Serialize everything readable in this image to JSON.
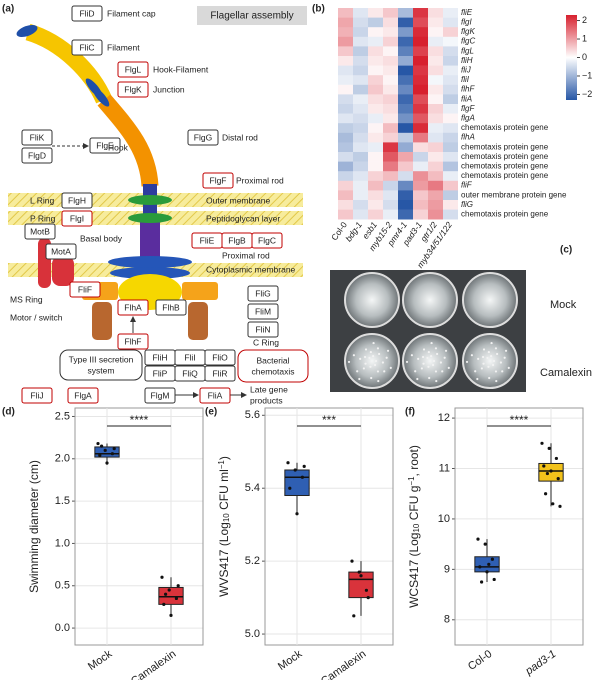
{
  "panel_labels": [
    "(a)",
    "(b)",
    "(c)",
    "(d)",
    "(e)",
    "(f)"
  ],
  "diagram": {
    "title": "Flagellar assembly",
    "boxes": [
      {
        "label": "FliD",
        "color": "#333333"
      },
      {
        "label": "FliC",
        "color": "#333333"
      },
      {
        "label": "FlgL",
        "color": "#c00000"
      },
      {
        "label": "FlgK",
        "color": "#c00000"
      },
      {
        "label": "FliK",
        "color": "#333333"
      },
      {
        "label": "FlgD",
        "color": "#333333"
      },
      {
        "label": "FlgE",
        "color": "#333333"
      },
      {
        "label": "FlgG",
        "color": "#333333"
      },
      {
        "label": "FlgF",
        "color": "#c00000"
      },
      {
        "label": "FlgH",
        "color": "#333333"
      },
      {
        "label": "FlgI",
        "color": "#c00000"
      },
      {
        "label": "MotB",
        "color": "#333333"
      },
      {
        "label": "MotA",
        "color": "#333333"
      },
      {
        "label": "FliE",
        "color": "#c00000"
      },
      {
        "label": "FlgB",
        "color": "#c00000"
      },
      {
        "label": "FlgC",
        "color": "#c00000"
      },
      {
        "label": "FliF",
        "color": "#c00000"
      },
      {
        "label": "FlhA",
        "color": "#c00000"
      },
      {
        "label": "FlhB",
        "color": "#333333"
      },
      {
        "label": "FlhF",
        "color": "#c00000"
      },
      {
        "label": "FliG",
        "color": "#333333"
      },
      {
        "label": "FliM",
        "color": "#333333"
      },
      {
        "label": "FliN",
        "color": "#333333"
      },
      {
        "label": "FliH",
        "color": "#333333"
      },
      {
        "label": "FliI",
        "color": "#333333"
      },
      {
        "label": "FliO",
        "color": "#333333"
      },
      {
        "label": "FliP",
        "color": "#333333"
      },
      {
        "label": "FliQ",
        "color": "#333333"
      },
      {
        "label": "FliR",
        "color": "#333333"
      },
      {
        "label": "FliJ",
        "color": "#c00000"
      },
      {
        "label": "FlgA",
        "color": "#c00000"
      },
      {
        "label": "FlgM",
        "color": "#333333"
      },
      {
        "label": "FliA",
        "color": "#c00000"
      }
    ],
    "captions": [
      "Filament cap",
      "Filament",
      "Hook-Filament",
      "Junction",
      "Hook",
      "Distal rod",
      "Proximal rod",
      "L Ring",
      "Outer membrane",
      "P Ring",
      "Peptidoglycan layer",
      "Basal body",
      "Proximal rod",
      "Cytoplasmic membrane",
      "MS Ring",
      "Motor / switch",
      "C Ring",
      "Late gene",
      "products"
    ],
    "secretion_box": [
      "Type III secretion",
      "system"
    ],
    "chemotaxis_box": {
      "lines": [
        "Bacterial",
        "chemotaxis"
      ],
      "color": "#c00000"
    }
  },
  "plates": {
    "rows": [
      "Mock",
      "Camalexin"
    ]
  },
  "chart_data": [
    {
      "type": "heatmap",
      "rows": [
        "fliE",
        "flgI",
        "flgK",
        "flgC",
        "flgL",
        "fliH",
        "fliJ",
        "fliI",
        "flhF",
        "fliA",
        "flgF",
        "flgA",
        "chemotaxis protein gene",
        "flhA",
        "chemotaxis protein gene",
        "chemotaxis protein gene",
        "chemotaxis protein gene",
        "chemotaxis protein gene",
        "fliF",
        "outer membrane protein gene",
        "fliG",
        "chemotaxis protein gene"
      ],
      "columns": [
        "Col-0",
        "bdg-1",
        "esb1",
        "myb15-2",
        "pmr4-1",
        "pad3-1",
        "gtr1/2",
        "myb34/51/122"
      ],
      "values": [
        [
          0.6,
          -0.3,
          0.2,
          0.5,
          -0.8,
          1.8,
          0.3,
          -0.2
        ],
        [
          0.8,
          -0.4,
          -0.6,
          0.3,
          -1.9,
          1.6,
          0.2,
          -0.3
        ],
        [
          0.7,
          -0.5,
          0.1,
          0.2,
          -1.2,
          1.9,
          0.1,
          0.4
        ],
        [
          0.9,
          -0.3,
          -0.2,
          0.4,
          -1.8,
          2.0,
          -0.2,
          -0.1
        ],
        [
          0.5,
          -0.6,
          0.3,
          0.1,
          -1.5,
          1.7,
          0.3,
          -0.4
        ],
        [
          0.2,
          -0.4,
          0.2,
          0.3,
          -1.0,
          2.1,
          0.2,
          -0.5
        ],
        [
          -0.3,
          -0.5,
          0.1,
          0.2,
          -2.0,
          1.8,
          0.3,
          -0.2
        ],
        [
          -0.2,
          -0.3,
          0.4,
          0.1,
          -1.7,
          1.9,
          -0.1,
          -0.3
        ],
        [
          0.1,
          -0.6,
          0.5,
          0.2,
          -1.4,
          2.0,
          0.2,
          -0.4
        ],
        [
          -0.4,
          -0.2,
          0.3,
          0.4,
          -1.8,
          1.6,
          0.1,
          -0.6
        ],
        [
          -0.5,
          -0.3,
          0.2,
          0.3,
          -1.6,
          1.8,
          0.4,
          -0.2
        ],
        [
          -0.3,
          -0.4,
          -0.2,
          0.2,
          -1.3,
          1.5,
          0.3,
          0.1
        ],
        [
          -0.6,
          -0.5,
          0.1,
          0.6,
          -2.1,
          1.9,
          -0.2,
          -0.3
        ],
        [
          -0.8,
          -0.4,
          0.2,
          0.4,
          -0.6,
          1.2,
          -0.3,
          -0.5
        ],
        [
          -0.7,
          -0.3,
          -0.2,
          1.8,
          -1.0,
          0.3,
          0.4,
          -0.6
        ],
        [
          -0.4,
          -0.6,
          0.1,
          1.5,
          0.8,
          -0.5,
          0.2,
          -0.3
        ],
        [
          -0.9,
          -0.5,
          0.1,
          1.2,
          0.5,
          -0.2,
          0.4,
          -0.7
        ],
        [
          -0.5,
          -0.3,
          0.4,
          0.6,
          -0.4,
          1.0,
          0.6,
          -0.2
        ],
        [
          0.4,
          -0.2,
          0.6,
          -0.5,
          -1.4,
          0.9,
          1.2,
          0.5
        ],
        [
          0.6,
          -0.2,
          0.3,
          -0.3,
          -1.9,
          0.5,
          0.8,
          -0.6
        ],
        [
          0.3,
          -0.4,
          0.2,
          -0.4,
          -2.0,
          0.6,
          0.9,
          0.2
        ],
        [
          0.5,
          -0.3,
          0.4,
          -0.2,
          -1.8,
          0.4,
          1.0,
          -0.4
        ]
      ],
      "colors": [
        "#2757a6",
        "#ffffff",
        "#d7202e"
      ],
      "clim": [
        -2.3,
        2.3
      ],
      "cticks": [
        2,
        1,
        0,
        {
          "value": -1,
          "label": "−1"
        },
        {
          "value": -2,
          "label": "−2"
        }
      ]
    },
    {
      "type": "box",
      "ylabel_parts": [
        {
          "text": "Swimming diameter (cm)",
          "shift": "none"
        }
      ],
      "categories": [
        "Mock",
        "Camalexin"
      ],
      "colors": [
        "#2f5fb3",
        "#d9333b"
      ],
      "boxes": [
        {
          "low": 1.93,
          "q1": 2.02,
          "median": 2.06,
          "q3": 2.14,
          "high": 2.18,
          "points": [
            2.18,
            2.1,
            2.06,
            2.04,
            1.95,
            2.12,
            2.15
          ]
        },
        {
          "low": 0.15,
          "q1": 0.28,
          "median": 0.37,
          "q3": 0.48,
          "high": 0.6,
          "points": [
            0.6,
            0.45,
            0.35,
            0.28,
            0.15,
            0.5,
            0.4
          ]
        }
      ],
      "ylim": [
        -0.2,
        2.6
      ],
      "yticks": [
        {
          "value": 0,
          "label": "0.0"
        },
        0.5,
        {
          "value": 1,
          "label": "1.0"
        },
        1.5,
        {
          "value": 2,
          "label": "2.0"
        },
        2.5
      ],
      "significance": "****",
      "grid": true
    },
    {
      "type": "box",
      "ylabel_parts": [
        {
          "text": "WVS417 (Log",
          "shift": "none"
        },
        {
          "text": "10",
          "shift": "sub"
        },
        {
          "text": " CFU ml",
          "shift": "none"
        },
        {
          "text": "−1",
          "shift": "super"
        },
        {
          "text": ")",
          "shift": "none"
        }
      ],
      "categories": [
        "Mock",
        "Camalexin"
      ],
      "colors": [
        "#2f5fb3",
        "#d9333b"
      ],
      "boxes": [
        {
          "low": 5.33,
          "q1": 5.38,
          "median": 5.43,
          "q3": 5.45,
          "high": 5.47,
          "points": [
            5.47,
            5.45,
            5.43,
            5.4,
            5.33,
            5.46
          ]
        },
        {
          "low": 5.05,
          "q1": 5.1,
          "median": 5.15,
          "q3": 5.17,
          "high": 5.2,
          "points": [
            5.2,
            5.17,
            5.12,
            5.05,
            5.16,
            5.1
          ]
        }
      ],
      "ylim": [
        4.97,
        5.62
      ],
      "yticks": [
        {
          "value": 5,
          "label": "5.0"
        },
        5.2,
        5.4,
        5.6
      ],
      "significance": "***",
      "grid": true
    },
    {
      "type": "box",
      "ylabel_parts": [
        {
          "text": "WCS417 (Log",
          "shift": "none"
        },
        {
          "text": "10",
          "shift": "sub"
        },
        {
          "text": " CFU g",
          "shift": "none"
        },
        {
          "text": "−1",
          "shift": "super"
        },
        {
          "text": ", root)",
          "shift": "none"
        }
      ],
      "categories": [
        "Col-0",
        "pad3-1"
      ],
      "colors": [
        "#2f5fb3",
        "#f2c21b"
      ],
      "boxes": [
        {
          "low": 8.75,
          "q1": 8.95,
          "median": 9.05,
          "q3": 9.25,
          "high": 9.6,
          "points": [
            9.6,
            9.5,
            9.2,
            9.05,
            8.95,
            8.8,
            8.75,
            9.1
          ]
        },
        {
          "low": 10.25,
          "q1": 10.75,
          "median": 10.95,
          "q3": 11.1,
          "high": 11.5,
          "points": [
            11.5,
            11.4,
            11.2,
            11.05,
            10.95,
            10.8,
            10.5,
            10.3,
            10.25,
            10.9
          ]
        }
      ],
      "ylim": [
        7.5,
        12.2
      ],
      "yticks": [
        8,
        9,
        10,
        11,
        12
      ],
      "significance": "****",
      "grid": true
    }
  ]
}
